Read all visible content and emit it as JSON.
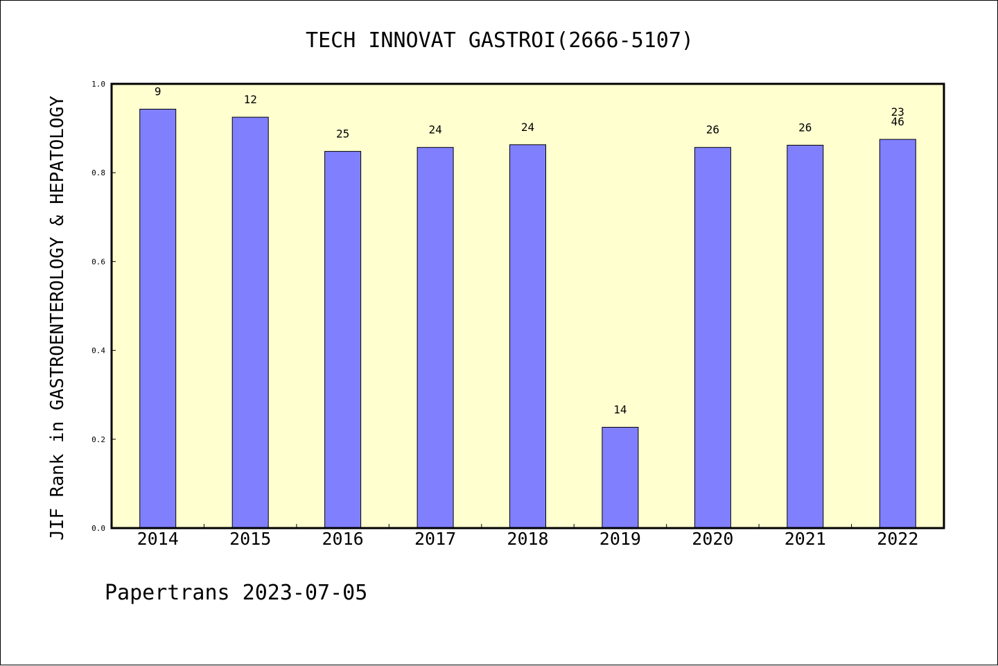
{
  "chart_data": {
    "type": "bar",
    "title": "TECH INNOVAT GASTROI(2666-5107)",
    "ylabel": "JIF Rank in GASTROENTEROLOGY & HEPATOLOGY",
    "xlabel": "",
    "ylim": [
      0,
      1.0
    ],
    "yticks": [
      "0.0",
      "0.2",
      "0.4",
      "0.6",
      "0.8",
      "1.0"
    ],
    "categories": [
      "2014",
      "2015",
      "2016",
      "2017",
      "2018",
      "2019",
      "2020",
      "2021",
      "2022"
    ],
    "values": [
      0.943,
      0.925,
      0.848,
      0.857,
      0.863,
      0.227,
      0.857,
      0.862,
      0.875
    ],
    "data_labels": [
      [
        "9"
      ],
      [
        "12"
      ],
      [
        "25"
      ],
      [
        "24"
      ],
      [
        "24"
      ],
      [
        "14"
      ],
      [
        "26"
      ],
      [
        "26"
      ],
      [
        "23",
        "46"
      ]
    ],
    "grid": false,
    "colors": {
      "plot_background": "#ffffd0",
      "bar_fill": "#8080ff",
      "bar_stroke": "#000000"
    }
  },
  "footer": {
    "text": "Papertrans 2023-07-05"
  }
}
